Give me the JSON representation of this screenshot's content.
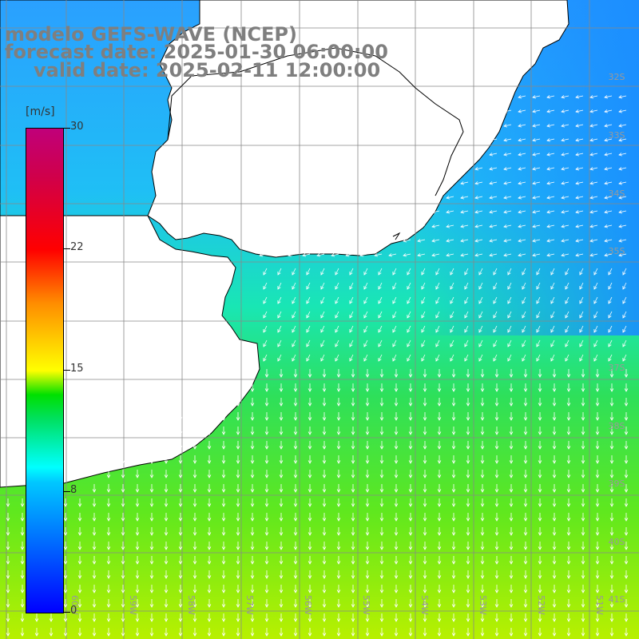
{
  "header": {
    "line1": "modelo GEFS-WAVE (NCEP)",
    "line2": "forecast date: 2025-01-30 06:00:00",
    "line3": "valid date: 2025-02-11 12:00:00"
  },
  "colorbar": {
    "unit": "[m/s]",
    "ticks": [
      "30",
      "22",
      "15",
      "8",
      "0"
    ],
    "colors": [
      "#0000ff",
      "#00ffff",
      "#00e000",
      "#ffff00",
      "#ff0000",
      "#c0007a"
    ]
  },
  "map": {
    "lat_labels": [
      "32S",
      "33S",
      "34S",
      "35S",
      "37S",
      "38S",
      "39S",
      "40S",
      "41S"
    ],
    "lon_labels": [
      "60W",
      "59W",
      "58W",
      "57W",
      "56W",
      "55W",
      "54W",
      "53W",
      "52W",
      "51W"
    ],
    "land_color": "#ffffff",
    "arrow_color": "#ffffff"
  }
}
